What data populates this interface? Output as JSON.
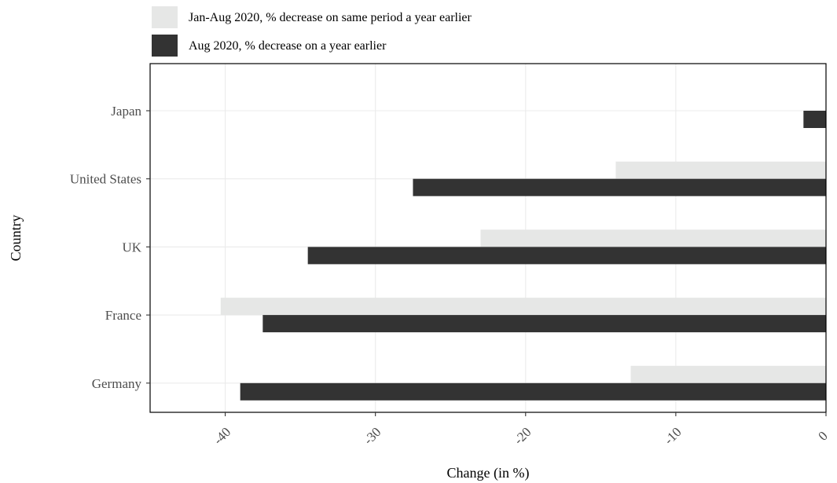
{
  "chart_data": {
    "type": "bar",
    "orientation": "horizontal",
    "title": "",
    "xlabel": "Change (in %)",
    "ylabel": "Country",
    "xlim": [
      -45,
      0
    ],
    "x_ticks": [
      -40,
      -30,
      -20,
      -10,
      0
    ],
    "x_tick_labels": [
      "-40",
      "-30",
      "-20",
      "-10",
      "0"
    ],
    "categories": [
      "Japan",
      "United States",
      "UK",
      "France",
      "Germany"
    ],
    "series": [
      {
        "name": "Jan-Aug 2020, % decrease on same period a year earlier",
        "color": "#e6e7e6",
        "values": [
          null,
          -14.0,
          -23.0,
          -40.3,
          -13.0
        ]
      },
      {
        "name": "Aug 2020, % decrease on a year earlier",
        "color": "#333333",
        "values": [
          -1.5,
          -27.5,
          -34.5,
          -37.5,
          -39.0
        ]
      }
    ],
    "grid": true,
    "legend": "top-left"
  }
}
